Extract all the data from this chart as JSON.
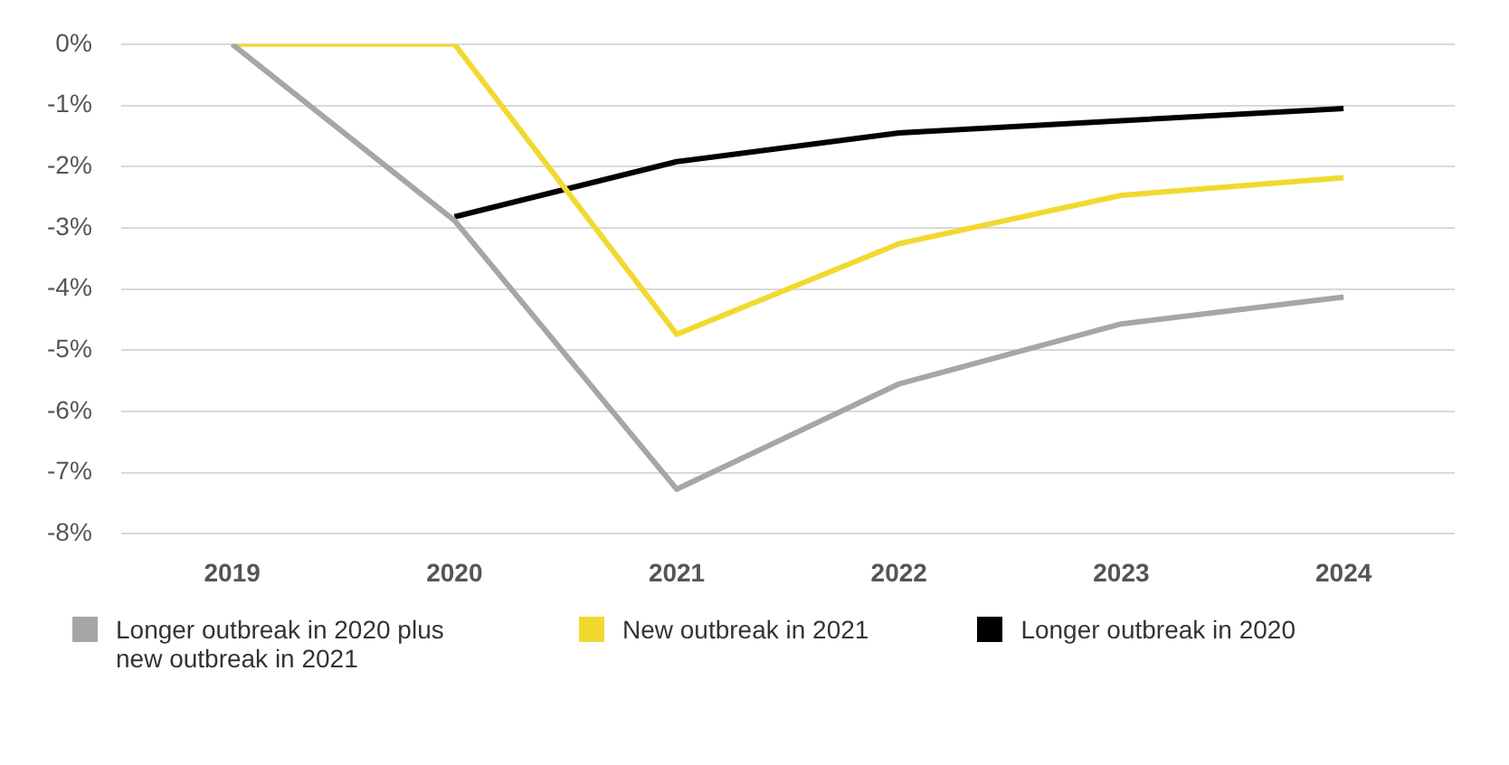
{
  "chart_data": {
    "type": "line",
    "categories": [
      "2019",
      "2020",
      "2021",
      "2022",
      "2023",
      "2024"
    ],
    "series": [
      {
        "name": "Longer outbreak in 2020 plus new outbreak in 2021",
        "color": "#a6a6a6",
        "values": [
          0,
          -2.88,
          -7.27,
          -5.55,
          -4.57,
          -4.13
        ]
      },
      {
        "name": "New outbreak in 2021",
        "color": "#f2d930",
        "values": [
          0,
          0,
          -4.74,
          -3.26,
          -2.47,
          -2.18
        ]
      },
      {
        "name": "Longer outbreak in 2020",
        "color": "#000000",
        "values": [
          null,
          -2.82,
          -1.92,
          -1.45,
          -1.25,
          -1.05
        ]
      }
    ],
    "ylim": [
      -8,
      0
    ],
    "yticks": [
      {
        "value": 0,
        "label": "0%"
      },
      {
        "value": -1,
        "label": "-1%"
      },
      {
        "value": -2,
        "label": "-2%"
      },
      {
        "value": -3,
        "label": "-3%"
      },
      {
        "value": -4,
        "label": "-4%"
      },
      {
        "value": -5,
        "label": "-5%"
      },
      {
        "value": -6,
        "label": "-6%"
      },
      {
        "value": -7,
        "label": "-7%"
      },
      {
        "value": -8,
        "label": "-8%"
      }
    ],
    "grid": "y",
    "legend": "bottom",
    "marker": "none",
    "line_style": "solid"
  }
}
